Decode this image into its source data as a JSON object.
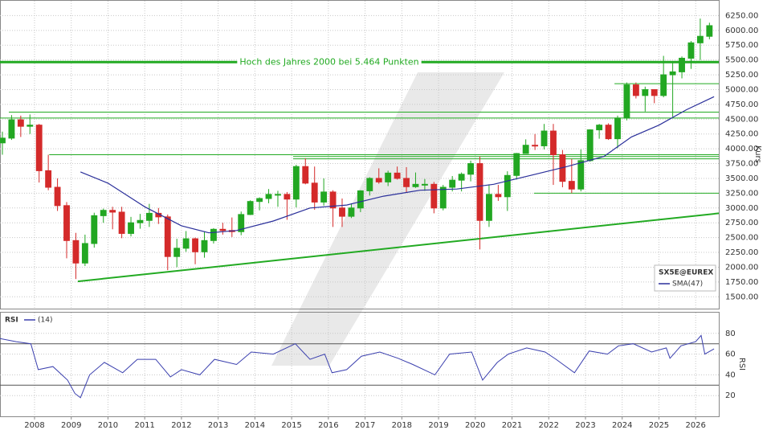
{
  "chart_data": [
    {
      "type": "candlestick",
      "name": "SX5E@EUREX",
      "ylabel": "Kurs",
      "grid": true,
      "up_color": "#22a722",
      "down_color": "#d42a2a",
      "xlim": [
        2007.06,
        2026.63
      ],
      "ylim": [
        1300,
        6500
      ],
      "yticks": [
        {
          "value": 1500,
          "label": "1500.00"
        },
        {
          "value": 1750,
          "label": "1750.00"
        },
        {
          "value": 2000,
          "label": "2000.00"
        },
        {
          "value": 2250,
          "label": "2250.00"
        },
        {
          "value": 2500,
          "label": "2500.00"
        },
        {
          "value": 2750,
          "label": "2750.00"
        },
        {
          "value": 3000,
          "label": "3000.00"
        },
        {
          "value": 3250,
          "label": "3250.00"
        },
        {
          "value": 3500,
          "label": "3500.00"
        },
        {
          "value": 3750,
          "label": "3750.00"
        },
        {
          "value": 4000,
          "label": "4000.00"
        },
        {
          "value": 4250,
          "label": "4250.00"
        },
        {
          "value": 4500,
          "label": "4500.00"
        },
        {
          "value": 4750,
          "label": "4750.00"
        },
        {
          "value": 5000,
          "label": "5000.00"
        },
        {
          "value": 5250,
          "label": "5250.00"
        },
        {
          "value": 5500,
          "label": "5500.00"
        },
        {
          "value": 5750,
          "label": "5750.00"
        },
        {
          "value": 6000,
          "label": "6000.00"
        },
        {
          "value": 6250,
          "label": "6250.00"
        }
      ],
      "x": [
        2007.125,
        2007.375,
        2007.625,
        2007.875,
        2008.125,
        2008.375,
        2008.625,
        2008.875,
        2009.125,
        2009.375,
        2009.625,
        2009.875,
        2010.125,
        2010.375,
        2010.625,
        2010.875,
        2011.125,
        2011.375,
        2011.625,
        2011.875,
        2012.125,
        2012.375,
        2012.625,
        2012.875,
        2013.125,
        2013.375,
        2013.625,
        2013.875,
        2014.125,
        2014.375,
        2014.625,
        2014.875,
        2015.125,
        2015.375,
        2015.625,
        2015.875,
        2016.125,
        2016.375,
        2016.625,
        2016.875,
        2017.125,
        2017.375,
        2017.625,
        2017.875,
        2018.125,
        2018.375,
        2018.625,
        2018.875,
        2019.125,
        2019.375,
        2019.625,
        2019.875,
        2020.125,
        2020.375,
        2020.625,
        2020.875,
        2021.125,
        2021.375,
        2021.625,
        2021.875,
        2022.125,
        2022.375,
        2022.625,
        2022.875,
        2023.125,
        2023.375,
        2023.625,
        2023.875,
        2024.125,
        2024.375,
        2024.625,
        2024.875,
        2025.125,
        2025.375,
        2025.625,
        2025.875,
        2026.125,
        2026.375
      ],
      "open": [
        4100,
        4180,
        4490,
        4380,
        4400,
        3630,
        3350,
        3040,
        2450,
        2070,
        2400,
        2870,
        2960,
        2930,
        2570,
        2750,
        2790,
        2910,
        2850,
        2180,
        2320,
        2480,
        2260,
        2450,
        2640,
        2620,
        2600,
        2890,
        3110,
        3160,
        3230,
        3230,
        3150,
        3700,
        3420,
        3100,
        3270,
        3000,
        2860,
        3000,
        3290,
        3500,
        3440,
        3590,
        3500,
        3360,
        3400,
        3400,
        3000,
        3350,
        3470,
        3570,
        3750,
        2790,
        3230,
        3190,
        3550,
        3920,
        4060,
        4050,
        4300,
        3900,
        3450,
        3320,
        3800,
        4320,
        4400,
        4170,
        4520,
        5080,
        4900,
        5000,
        4900,
        5250,
        5300,
        5530,
        5790,
        5900
      ],
      "high": [
        4290,
        4570,
        4560,
        4580,
        4420,
        3900,
        3500,
        3100,
        2580,
        2550,
        2920,
        2990,
        3020,
        3020,
        2850,
        2900,
        3070,
        3000,
        2890,
        2480,
        2610,
        2500,
        2600,
        2660,
        2750,
        2840,
        2940,
        3130,
        3180,
        3320,
        3290,
        3270,
        3730,
        3840,
        3700,
        3500,
        3300,
        3160,
        3080,
        3300,
        3520,
        3670,
        3630,
        3700,
        3690,
        3600,
        3490,
        3440,
        3390,
        3540,
        3600,
        3800,
        3870,
        3400,
        3390,
        3620,
        3930,
        4160,
        4250,
        4420,
        4420,
        3980,
        3830,
        3990,
        4330,
        4420,
        4430,
        4560,
        5120,
        5120,
        5050,
        5000,
        5570,
        5480,
        5560,
        5820,
        6200,
        6130
      ],
      "low": [
        3900,
        4150,
        4200,
        4250,
        3430,
        3300,
        2950,
        2150,
        1800,
        2020,
        2330,
        2750,
        2640,
        2490,
        2520,
        2650,
        2680,
        2730,
        1950,
        2000,
        2260,
        2050,
        2160,
        2400,
        2550,
        2510,
        2540,
        2880,
        2960,
        3080,
        3020,
        2800,
        3010,
        3400,
        2970,
        3040,
        2680,
        2680,
        2830,
        2930,
        3210,
        3410,
        3370,
        3480,
        3260,
        3340,
        3290,
        2910,
        2960,
        3280,
        3280,
        3450,
        2300,
        2680,
        3120,
        2950,
        3480,
        3920,
        3980,
        3990,
        3390,
        3350,
        3250,
        3280,
        3780,
        4170,
        4150,
        4010,
        4480,
        4850,
        4630,
        4770,
        4870,
        4540,
        5190,
        5350,
        5500,
        5850
      ],
      "close": [
        4180,
        4490,
        4380,
        4400,
        3630,
        3350,
        3040,
        2450,
        2070,
        2400,
        2870,
        2960,
        2930,
        2570,
        2750,
        2790,
        2910,
        2850,
        2180,
        2320,
        2480,
        2260,
        2450,
        2640,
        2620,
        2600,
        2890,
        3110,
        3160,
        3230,
        3230,
        3150,
        3700,
        3420,
        3100,
        3270,
        3000,
        2860,
        3000,
        3290,
        3500,
        3440,
        3590,
        3500,
        3360,
        3400,
        3400,
        3000,
        3350,
        3470,
        3570,
        3750,
        2790,
        3230,
        3190,
        3550,
        3920,
        4060,
        4050,
        4300,
        3900,
        3450,
        3320,
        3800,
        4320,
        4400,
        4170,
        4520,
        5080,
        4900,
        5000,
        4900,
        5250,
        5300,
        5530,
        5790,
        5900,
        6080
      ],
      "overlay": {
        "name": "SMA(47)",
        "color": "#2a2f9a",
        "x": [
          2009.25,
          2010,
          2011,
          2012,
          2012.75,
          2013.5,
          2014.5,
          2015.5,
          2016.5,
          2017.5,
          2018.5,
          2019.5,
          2020.5,
          2021.5,
          2022.5,
          2023.5,
          2024.25,
          2025,
          2025.75,
          2026.5
        ],
        "values": [
          3610,
          3420,
          3020,
          2700,
          2580,
          2620,
          2780,
          3000,
          3050,
          3200,
          3300,
          3320,
          3400,
          3550,
          3700,
          3870,
          4200,
          4400,
          4660,
          4880
        ]
      },
      "levels": [
        {
          "value": 5464,
          "x": 2007.06,
          "width": 3
        },
        {
          "value": 4620,
          "x": 2007.3,
          "width": 1
        },
        {
          "value": 4520,
          "x": 2007.06,
          "width": 1
        },
        {
          "value": 3900,
          "x": 2008.4,
          "width": 1
        },
        {
          "value": 3870,
          "x": 2015.04,
          "width": 1
        },
        {
          "value": 3830,
          "x": 2015.04,
          "width": 1
        },
        {
          "value": 5100,
          "x": 2023.79,
          "width": 1
        },
        {
          "value": 3250,
          "x": 2021.6,
          "width": 1
        }
      ],
      "level_color": "#22aa22",
      "annotation": "Hoch des Jahres 2000 bei 5.464 Punkten",
      "trendline": {
        "x": [
          2009.18,
          2026.63
        ],
        "values": [
          1760,
          2910
        ]
      }
    },
    {
      "type": "line",
      "title": "RSI",
      "ylabel": "RSI",
      "grid": true,
      "xlim": [
        2007.06,
        2026.63
      ],
      "ylim": [
        0,
        100
      ],
      "yticks": [
        20,
        40,
        60,
        80
      ],
      "xticks": [
        2008,
        2009,
        2010,
        2011,
        2012,
        2013,
        2014,
        2015,
        2016,
        2017,
        2018,
        2019,
        2020,
        2021,
        2022,
        2023,
        2024,
        2025,
        2026
      ],
      "levels": [
        30,
        70
      ],
      "series": [
        {
          "name": "(14)",
          "color": "#3a3fae",
          "x": [
            2007.06,
            2007.5,
            2007.9,
            2008.1,
            2008.5,
            2008.9,
            2009.1,
            2009.25,
            2009.5,
            2009.9,
            2010.4,
            2010.8,
            2011.3,
            2011.7,
            2012.0,
            2012.5,
            2012.9,
            2013.5,
            2013.9,
            2014.5,
            2015.1,
            2015.5,
            2015.9,
            2016.1,
            2016.5,
            2016.9,
            2017.4,
            2017.9,
            2018.3,
            2018.9,
            2019.3,
            2019.9,
            2020.2,
            2020.6,
            2020.9,
            2021.4,
            2021.9,
            2022.2,
            2022.7,
            2023.1,
            2023.6,
            2023.9,
            2024.3,
            2024.8,
            2025.2,
            2025.3,
            2025.6,
            2026.0,
            2026.15,
            2026.25,
            2026.5
          ],
          "values": [
            75,
            72,
            70,
            45,
            48,
            35,
            22,
            18,
            40,
            52,
            42,
            55,
            55,
            38,
            45,
            40,
            55,
            50,
            62,
            60,
            70,
            55,
            60,
            42,
            45,
            58,
            62,
            56,
            50,
            40,
            60,
            62,
            35,
            52,
            60,
            66,
            62,
            55,
            42,
            63,
            60,
            68,
            70,
            62,
            66,
            56,
            68,
            72,
            78,
            60,
            65
          ]
        }
      ]
    }
  ]
}
